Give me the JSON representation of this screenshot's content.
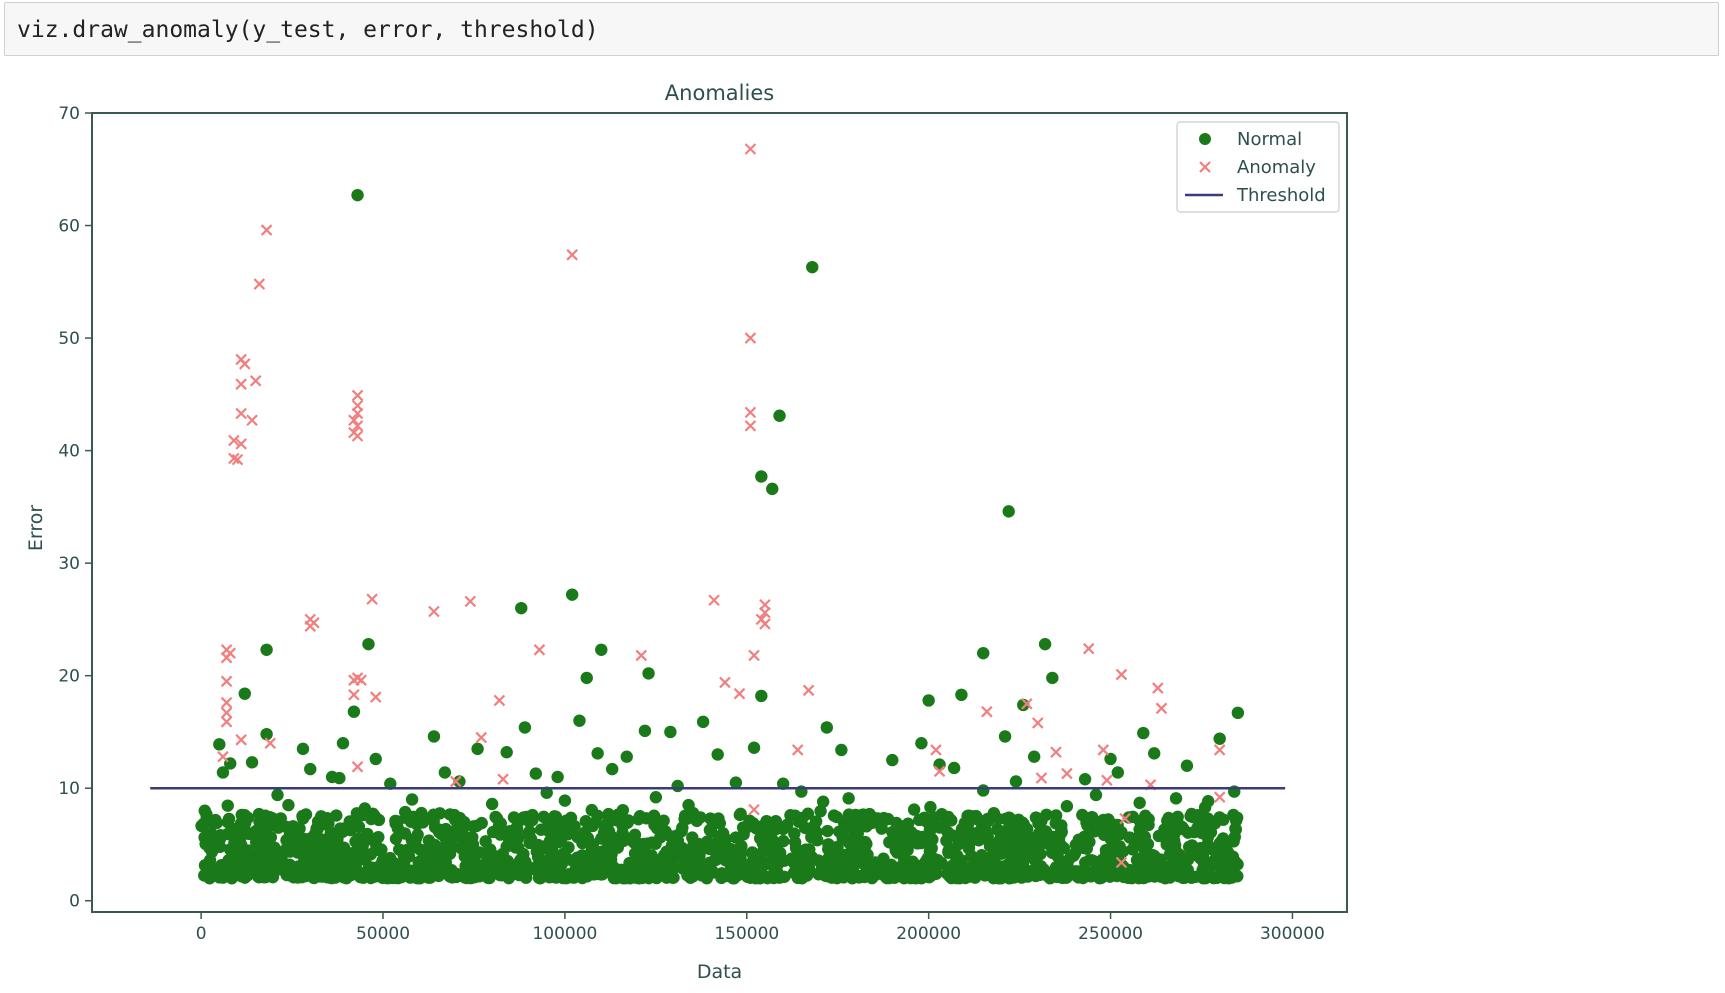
{
  "cell": {
    "code": "viz.draw_anomaly(y_test, error, threshold)"
  },
  "chart_data": {
    "type": "scatter",
    "title": "Anomalies",
    "xlabel": "Data",
    "ylabel": "Error",
    "xlim": [
      -30000,
      315000
    ],
    "ylim": [
      -1,
      70
    ],
    "xticks": [
      0,
      50000,
      100000,
      150000,
      200000,
      250000,
      300000
    ],
    "xtick_labels": [
      "0",
      "50000",
      "100000",
      "150000",
      "200000",
      "250000",
      "300000"
    ],
    "yticks": [
      0,
      10,
      20,
      30,
      40,
      50,
      60,
      70
    ],
    "ytick_labels": [
      "0",
      "10",
      "20",
      "30",
      "40",
      "50",
      "60",
      "70"
    ],
    "grid": false,
    "legend_position": "top-right",
    "legend": [
      "Normal",
      "Anomaly",
      "Threshold"
    ],
    "colors": {
      "normal": "#1a7a1a",
      "anomaly": "#f08080",
      "threshold": "#3b3b7a",
      "axes": "#3a5a4a",
      "text": "#2f4f4f"
    },
    "threshold": {
      "value": 10,
      "x_start": -14000,
      "x_end": 298000
    },
    "series": [
      {
        "name": "Normal",
        "marker": "circle",
        "points": [
          [
            43000,
            62.7
          ],
          [
            168000,
            56.3
          ],
          [
            159000,
            43.1
          ],
          [
            154000,
            37.7
          ],
          [
            157000,
            36.6
          ],
          [
            222000,
            34.6
          ],
          [
            102000,
            27.2
          ],
          [
            88000,
            26
          ],
          [
            46000,
            22.8
          ],
          [
            18000,
            22.3
          ],
          [
            110000,
            22.3
          ],
          [
            215000,
            22
          ],
          [
            232000,
            22.8
          ],
          [
            123000,
            20.2
          ],
          [
            106000,
            19.8
          ],
          [
            234000,
            19.8
          ],
          [
            12000,
            18.4
          ],
          [
            154000,
            18.2
          ],
          [
            209000,
            18.3
          ],
          [
            200000,
            17.8
          ],
          [
            226000,
            17.4
          ],
          [
            42000,
            16.8
          ],
          [
            285000,
            16.7
          ],
          [
            104000,
            16
          ],
          [
            138000,
            15.9
          ],
          [
            89000,
            15.4
          ],
          [
            122000,
            15.1
          ],
          [
            172000,
            15.4
          ],
          [
            259000,
            14.9
          ],
          [
            5000,
            13.9
          ],
          [
            18000,
            14.8
          ],
          [
            64000,
            14.6
          ],
          [
            129000,
            15
          ],
          [
            28000,
            13.5
          ],
          [
            39000,
            14
          ],
          [
            76000,
            13.5
          ],
          [
            84000,
            13.2
          ],
          [
            109000,
            13.1
          ],
          [
            152000,
            13.6
          ],
          [
            176000,
            13.4
          ],
          [
            198000,
            14
          ],
          [
            203000,
            12.1
          ],
          [
            221000,
            14.6
          ],
          [
            229000,
            12.8
          ],
          [
            250000,
            12.6
          ],
          [
            262000,
            13.1
          ],
          [
            280000,
            14.4
          ],
          [
            8000,
            12.2
          ],
          [
            14000,
            12.3
          ],
          [
            30000,
            11.7
          ],
          [
            36000,
            11
          ],
          [
            48000,
            12.6
          ],
          [
            67000,
            11.4
          ],
          [
            92000,
            11.3
          ],
          [
            98000,
            11
          ],
          [
            113000,
            11.7
          ],
          [
            117000,
            12.8
          ],
          [
            131000,
            10.2
          ],
          [
            142000,
            13
          ],
          [
            160000,
            10.4
          ],
          [
            190000,
            12.5
          ],
          [
            207000,
            11.8
          ],
          [
            224000,
            10.6
          ],
          [
            243000,
            10.8
          ],
          [
            252000,
            11.4
          ],
          [
            271000,
            12
          ],
          [
            6000,
            11.4
          ],
          [
            21000,
            9.4
          ],
          [
            38000,
            10.9
          ],
          [
            52000,
            10.4
          ],
          [
            71000,
            10.6
          ],
          [
            95000,
            9.6
          ],
          [
            125000,
            9.2
          ],
          [
            147000,
            10.5
          ],
          [
            165000,
            9.7
          ],
          [
            178000,
            9.1
          ],
          [
            215000,
            9.8
          ],
          [
            246000,
            9.4
          ],
          [
            268000,
            9.1
          ],
          [
            284000,
            9.7
          ],
          [
            1000,
            8
          ],
          [
            24000,
            8.5
          ],
          [
            45000,
            8.2
          ],
          [
            58000,
            9
          ],
          [
            80000,
            8.6
          ],
          [
            100000,
            8.9
          ],
          [
            134000,
            8.5
          ],
          [
            171000,
            8.8
          ],
          [
            196000,
            8.1
          ],
          [
            238000,
            8.4
          ],
          [
            258000,
            8.7
          ],
          [
            276000,
            8.3
          ],
          [
            12000,
            7.6
          ],
          [
            33000,
            7.5
          ],
          [
            61000,
            7.3
          ],
          [
            86000,
            7.4
          ],
          [
            112000,
            7.7
          ],
          [
            140000,
            7.3
          ],
          [
            162000,
            7.6
          ],
          [
            185000,
            7.2
          ],
          [
            212000,
            7.5
          ],
          [
            231000,
            7.1
          ],
          [
            255000,
            7.4
          ],
          [
            281000,
            7.2
          ]
        ]
      },
      {
        "name": "Anomaly",
        "marker": "x",
        "points": [
          [
            151000,
            66.8
          ],
          [
            18000,
            59.6
          ],
          [
            102000,
            57.4
          ],
          [
            16000,
            54.8
          ],
          [
            151000,
            50
          ],
          [
            11000,
            48.1
          ],
          [
            12000,
            47.7
          ],
          [
            11000,
            45.9
          ],
          [
            15000,
            46.2
          ],
          [
            43000,
            44.9
          ],
          [
            43000,
            44
          ],
          [
            43000,
            43.3
          ],
          [
            42000,
            42.7
          ],
          [
            43000,
            42.2
          ],
          [
            42000,
            41.6
          ],
          [
            43000,
            41.3
          ],
          [
            151000,
            43.4
          ],
          [
            151000,
            42.2
          ],
          [
            11000,
            43.3
          ],
          [
            14000,
            42.7
          ],
          [
            9000,
            40.9
          ],
          [
            11000,
            40.6
          ],
          [
            9000,
            39.3
          ],
          [
            10000,
            39.2
          ],
          [
            30000,
            25
          ],
          [
            31000,
            24.7
          ],
          [
            30000,
            24.4
          ],
          [
            155000,
            26.3
          ],
          [
            155000,
            25.6
          ],
          [
            154000,
            25
          ],
          [
            155000,
            24.6
          ],
          [
            47000,
            26.8
          ],
          [
            64000,
            25.7
          ],
          [
            74000,
            26.6
          ],
          [
            141000,
            26.7
          ],
          [
            7000,
            22.3
          ],
          [
            7000,
            21.6
          ],
          [
            8000,
            22
          ],
          [
            244000,
            22.4
          ],
          [
            93000,
            22.3
          ],
          [
            121000,
            21.8
          ],
          [
            152000,
            21.8
          ],
          [
            7000,
            19.5
          ],
          [
            43000,
            19.8
          ],
          [
            42000,
            19.6
          ],
          [
            44000,
            19.6
          ],
          [
            144000,
            19.4
          ],
          [
            253000,
            20.1
          ],
          [
            7000,
            17.6
          ],
          [
            42000,
            18.3
          ],
          [
            48000,
            18.1
          ],
          [
            82000,
            17.8
          ],
          [
            148000,
            18.4
          ],
          [
            167000,
            18.7
          ],
          [
            263000,
            18.9
          ],
          [
            7000,
            16.7
          ],
          [
            7000,
            15.9
          ],
          [
            216000,
            16.8
          ],
          [
            227000,
            17.5
          ],
          [
            230000,
            15.8
          ],
          [
            264000,
            17.1
          ],
          [
            11000,
            14.3
          ],
          [
            19000,
            14
          ],
          [
            77000,
            14.5
          ],
          [
            164000,
            13.4
          ],
          [
            202000,
            13.4
          ],
          [
            235000,
            13.2
          ],
          [
            248000,
            13.4
          ],
          [
            280000,
            13.4
          ],
          [
            6000,
            12.8
          ],
          [
            43000,
            11.9
          ],
          [
            203000,
            11.5
          ],
          [
            231000,
            10.9
          ],
          [
            238000,
            11.3
          ],
          [
            249000,
            10.7
          ],
          [
            83000,
            10.8
          ],
          [
            70000,
            10.6
          ],
          [
            261000,
            10.3
          ],
          [
            280000,
            9.2
          ],
          [
            254000,
            7.3
          ],
          [
            152000,
            8.1
          ],
          [
            253000,
            3.4
          ]
        ]
      }
    ]
  }
}
